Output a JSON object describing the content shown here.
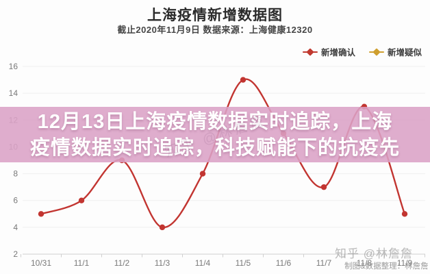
{
  "header": {
    "title": "上海疫情新增数据图",
    "subtitle": "截止2020年11月9日 数据来源：上海健康12320"
  },
  "legend": [
    {
      "label": "新增确认",
      "color": "#c0392f"
    },
    {
      "label": "新增疑似",
      "color": "#cf9f2f"
    }
  ],
  "banner": {
    "line1": "12月13日上海疫情数据实时追踪，上海",
    "line2": "疫情数据实时追踪，科技赋能下的抗疫先",
    "bg_color": "#dba2c6",
    "text_color": "#ffffff"
  },
  "watermark": {
    "main": "知乎 @林詹詹",
    "credit": "制图&数据整理：林詹詹"
  },
  "chart_data": {
    "type": "line",
    "smooth": true,
    "grid": true,
    "legend_position": "top-right",
    "categories": [
      "10/31",
      "11/1",
      "11/2",
      "11/3",
      "11/4",
      "11/5",
      "11/6",
      "11/7",
      "11/8",
      "11/9"
    ],
    "series": [
      {
        "name": "新增确认",
        "color": "#c23531",
        "values": [
          5,
          6,
          9,
          4,
          8,
          15,
          11,
          7,
          13,
          5
        ]
      },
      {
        "name": "新增疑似",
        "color": "#cf9f2f",
        "values": []
      }
    ],
    "ylim": [
      2,
      16
    ],
    "yticks": [
      2,
      4,
      6,
      8,
      10,
      12,
      14,
      16
    ],
    "xlabel": "",
    "ylabel": ""
  }
}
